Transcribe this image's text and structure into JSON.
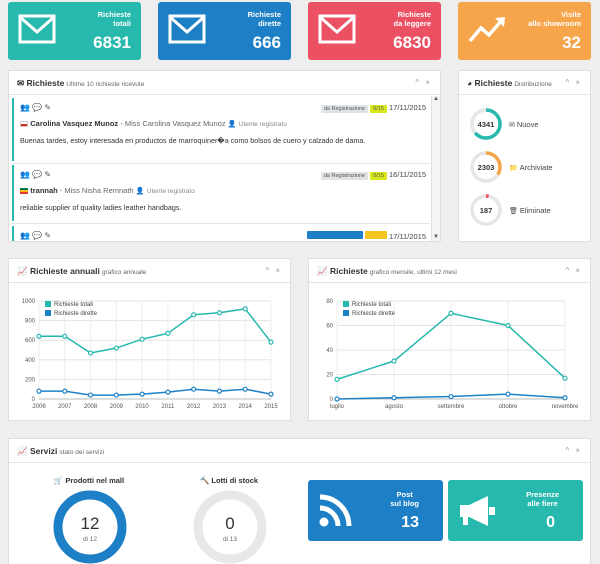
{
  "stats": [
    {
      "label1": "Richieste",
      "label2": "totali",
      "value": "6831",
      "color": "#27b9ad",
      "icon": "envelope-icon"
    },
    {
      "label1": "Richieste",
      "label2": "dirette",
      "value": "666",
      "color": "#1d80c6",
      "icon": "envelope-icon"
    },
    {
      "label1": "Richieste",
      "label2": "da leggere",
      "value": "6830",
      "color": "#eb5163",
      "icon": "envelope-icon"
    },
    {
      "label1": "Visite",
      "label2": "allo showroom",
      "value": "32",
      "color": "#f7a54b",
      "icon": "trend-icon"
    }
  ],
  "requests_panel": {
    "title": "Richieste",
    "subtitle": "Ultime 10 richieste ricevute",
    "controls": "^ ×",
    "items": [
      {
        "tag1": "da Registrazione",
        "tag2": "6/15",
        "date": "17/11/2015",
        "name": "Carolina Vasquez Munoz",
        "miss": " - Miss Carolina Vasquez Munoz",
        "user": "Utente registrato",
        "msg": "Buenas tardes, estoy interesada en productos de marroquiner�a como bolsos de cuero y calzado de dama."
      },
      {
        "tag1": "da Registrazione",
        "tag2": "6/15",
        "date": "16/11/2015",
        "name": "trannah",
        "miss": " - Miss Nisha Remnath",
        "user": "Utente registrato",
        "msg": "reliable supplier of quality ladies leather handbags."
      },
      {
        "tag1": "",
        "tag2": "",
        "date": "17/11/2015",
        "name": "",
        "miss": "",
        "user": "",
        "msg": ""
      }
    ]
  },
  "distribution": {
    "title": "Richieste",
    "subtitle": "Distribuzione",
    "controls": "^ ×",
    "items": [
      {
        "value": "4341",
        "label": "Nuove",
        "color": "#27b9ad",
        "pct": 0.64,
        "icon": "envelope-icon"
      },
      {
        "value": "2303",
        "label": "Archiviate",
        "color": "#f7a54b",
        "pct": 0.34,
        "icon": "folder-icon"
      },
      {
        "value": "187",
        "label": "Eliminate",
        "color": "#eb5163",
        "pct": 0.03,
        "icon": "trash-icon"
      }
    ]
  },
  "annual": {
    "title": "Richieste annuali",
    "subtitle": "grafico annuale",
    "controls": "^ ×"
  },
  "monthly": {
    "title": "Richieste",
    "subtitle": "grafico mensile, ultimi 12 mesi",
    "controls": "^ ×"
  },
  "chart_data": [
    {
      "type": "line",
      "title": "Richieste annuali",
      "x": [
        "2006",
        "2007",
        "2008",
        "2009",
        "2010",
        "2011",
        "2012",
        "2013",
        "2014",
        "2015"
      ],
      "ylim": [
        0,
        1000
      ],
      "yticks": [
        "0",
        "200",
        "400",
        "600",
        "800",
        "1000"
      ],
      "series": [
        {
          "name": "Richieste totali",
          "color": "#27b9ad",
          "values": [
            640,
            640,
            470,
            520,
            610,
            670,
            860,
            880,
            920,
            580
          ]
        },
        {
          "name": "Richieste dirette",
          "color": "#1d80c6",
          "values": [
            80,
            80,
            40,
            40,
            50,
            70,
            100,
            80,
            100,
            50
          ]
        }
      ]
    },
    {
      "type": "line",
      "title": "Richieste",
      "x": [
        "luglio",
        "agosto",
        "settembre",
        "ottobre",
        "novembre"
      ],
      "ylim": [
        0,
        80
      ],
      "yticks": [
        "0",
        "20",
        "40",
        "60",
        "80"
      ],
      "series": [
        {
          "name": "Richieste totali",
          "color": "#27b9ad",
          "values": [
            16,
            31,
            70,
            60,
            17
          ]
        },
        {
          "name": "Richieste dirette",
          "color": "#1d80c6",
          "values": [
            0,
            1,
            2,
            4,
            1
          ]
        }
      ]
    }
  ],
  "services": {
    "title": "Servizi",
    "subtitle": "stato dei servizi",
    "controls": "^ ×",
    "prodotti": {
      "label": "Prodotti nel mall",
      "value": "12",
      "sub": "di 12",
      "pct": 1.0,
      "color": "#1d80c6"
    },
    "lotti": {
      "label": "Lotti di stock",
      "value": "0",
      "sub": "di 13",
      "pct": 0.0,
      "color": "#1d80c6"
    },
    "blog": {
      "label1": "Post",
      "label2": "sul blog",
      "value": "13",
      "color": "#1d80c6"
    },
    "fiere": {
      "label1": "Presenze",
      "label2": "alle fiere",
      "value": "0",
      "color": "#27b9ad"
    }
  }
}
